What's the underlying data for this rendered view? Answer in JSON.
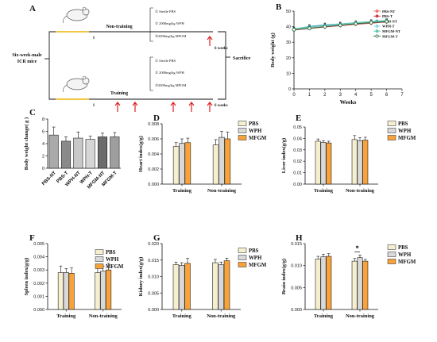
{
  "schematic": {
    "panel_label": "A",
    "left_label_line1": "Six-week-male",
    "left_label_line2": "ICR mice",
    "top_group": "Non-training",
    "top_items": [
      "① Sterile PBS",
      "② 2000mg/kg WPH",
      "③2000mg/kg MFGM"
    ],
    "bottom_group": "Training",
    "bottom_items": [
      "① Sterile PBS",
      "② 2000mg/kg WPH",
      "③2000mg/kg MFGM"
    ],
    "start_tick": "0",
    "end_label": "6 weeks",
    "sacrifice": "Sacrifice",
    "accent_color": "#f2c744",
    "arrow_color": "#e02020"
  },
  "chart_data": [
    {
      "id": "B",
      "panel_label": "B",
      "type": "line",
      "xlabel": "Weeks",
      "ylabel": "Body weight (g)",
      "xlim": [
        0,
        7
      ],
      "ylim": [
        0,
        50
      ],
      "xticks": [
        "0",
        "1",
        "2",
        "3",
        "4",
        "5",
        "6",
        "7"
      ],
      "yticks": [
        "0",
        "10",
        "20",
        "30",
        "40",
        "50"
      ],
      "x": [
        0,
        1,
        2,
        3,
        4,
        5,
        6
      ],
      "legend_position": "top-right",
      "series": [
        {
          "name": "PBS-NT",
          "color": "#f07a7a",
          "marker": "circle",
          "values": [
            38.0,
            39.5,
            40.2,
            41.0,
            42.0,
            42.8,
            43.5
          ]
        },
        {
          "name": "PBS-T",
          "color": "#d04040",
          "marker": "circle",
          "values": [
            37.8,
            38.8,
            39.8,
            40.6,
            41.5,
            42.2,
            43.0
          ]
        },
        {
          "name": "WPH-NT",
          "color": "#3fa0d8",
          "marker": "triangle",
          "values": [
            38.5,
            40.2,
            41.2,
            41.8,
            42.5,
            43.2,
            43.8
          ]
        },
        {
          "name": "WPH-T",
          "color": "#8ed6e8",
          "marker": "triangle",
          "values": [
            38.2,
            39.6,
            40.6,
            41.3,
            42.2,
            43.0,
            43.6
          ]
        },
        {
          "name": "MFGM-NT",
          "color": "#5fc9a8",
          "marker": "diamond",
          "values": [
            38.6,
            39.8,
            40.9,
            41.6,
            42.7,
            43.3,
            44.0
          ]
        },
        {
          "name": "MFGM-T",
          "color": "#1f6a3a",
          "marker": "circle-open",
          "values": [
            38.1,
            38.9,
            40.0,
            40.9,
            41.9,
            42.6,
            43.3
          ]
        }
      ]
    },
    {
      "id": "C",
      "panel_label": "C",
      "type": "bar",
      "ylabel": "Body weight change( g )",
      "ylim": [
        0,
        8
      ],
      "yticks": [
        "0",
        "2",
        "4",
        "6",
        "8"
      ],
      "categories": [
        "PBS-NT",
        "PBS-T",
        "WPH-NT",
        "WPH-T",
        "MFGM-NT",
        "MFGM-T"
      ],
      "values": [
        5.4,
        4.4,
        4.9,
        4.7,
        5.1,
        5.1
      ],
      "errors": [
        1.3,
        0.7,
        1.0,
        0.5,
        0.6,
        0.7
      ],
      "colors": [
        "#aaaaaa",
        "#8a8a8a",
        "#c8c8c8",
        "#d6d6d6",
        "#6c6c6c",
        "#9e9e9e"
      ]
    },
    {
      "id": "D",
      "panel_label": "D",
      "type": "bar",
      "ylabel": "Heart index(g/g)",
      "ylim": [
        0,
        0.008
      ],
      "yticks": [
        "0.000",
        "0.002",
        "0.004",
        "0.006",
        "0.008"
      ],
      "categories": [
        "Training",
        "Non-training"
      ],
      "series": [
        {
          "name": "PBS",
          "color": "#f5efcf",
          "values": [
            0.005,
            0.0052
          ],
          "errors": [
            0.0005,
            0.0007
          ]
        },
        {
          "name": "WPH",
          "color": "#d9d9d9",
          "values": [
            0.0054,
            0.0062
          ],
          "errors": [
            0.0006,
            0.0008
          ]
        },
        {
          "name": "MFGM",
          "color": "#f7a23a",
          "values": [
            0.0055,
            0.006
          ],
          "errors": [
            0.0006,
            0.0009
          ]
        }
      ]
    },
    {
      "id": "E",
      "panel_label": "E",
      "type": "bar",
      "ylabel": "Liver index(g/g)",
      "ylim": [
        0,
        0.05
      ],
      "yticks": [
        "0.00",
        "0.01",
        "0.02",
        "0.03",
        "0.04",
        "0.05"
      ],
      "categories": [
        "Training",
        "Non-training"
      ],
      "series": [
        {
          "name": "PBS",
          "color": "#f5efcf",
          "values": [
            0.0375,
            0.039
          ],
          "errors": [
            0.002,
            0.0035
          ]
        },
        {
          "name": "WPH",
          "color": "#d9d9d9",
          "values": [
            0.0365,
            0.038
          ],
          "errors": [
            0.0015,
            0.0025
          ]
        },
        {
          "name": "MFGM",
          "color": "#f7a23a",
          "values": [
            0.036,
            0.0385
          ],
          "errors": [
            0.0015,
            0.0025
          ]
        }
      ]
    },
    {
      "id": "F",
      "panel_label": "F",
      "type": "bar",
      "ylabel": "Spleen index(g/g)",
      "ylim": [
        0,
        0.005
      ],
      "yticks": [
        "0.000",
        "0.001",
        "0.002",
        "0.003",
        "0.004",
        "0.005"
      ],
      "categories": [
        "Training",
        "Non-training"
      ],
      "series": [
        {
          "name": "PBS",
          "color": "#f5efcf",
          "values": [
            0.0028,
            0.0028
          ],
          "errors": [
            0.0005,
            0.0005
          ]
        },
        {
          "name": "WPH",
          "color": "#d9d9d9",
          "values": [
            0.0028,
            0.0029
          ],
          "errors": [
            0.0003,
            0.0004
          ]
        },
        {
          "name": "MFGM",
          "color": "#f7a23a",
          "values": [
            0.00275,
            0.003
          ],
          "errors": [
            0.0004,
            0.0005
          ]
        }
      ]
    },
    {
      "id": "G",
      "panel_label": "G",
      "type": "bar",
      "ylabel": "Kidney index(g/g)",
      "ylim": [
        0,
        0.02
      ],
      "yticks": [
        "0.000",
        "0.005",
        "0.010",
        "0.015",
        "0.020"
      ],
      "categories": [
        "Training",
        "Non-training"
      ],
      "series": [
        {
          "name": "PBS",
          "color": "#f5efcf",
          "values": [
            0.0136,
            0.0142
          ],
          "errors": [
            0.0008,
            0.001
          ]
        },
        {
          "name": "WPH",
          "color": "#d9d9d9",
          "values": [
            0.0134,
            0.0136
          ],
          "errors": [
            0.0008,
            0.0008
          ]
        },
        {
          "name": "MFGM",
          "color": "#f7a23a",
          "values": [
            0.014,
            0.0148
          ],
          "errors": [
            0.0015,
            0.0008
          ]
        }
      ]
    },
    {
      "id": "H",
      "panel_label": "H",
      "type": "bar",
      "ylabel": "Brain index(g/g)",
      "ylim": [
        0,
        0.015
      ],
      "yticks": [
        "0.000",
        "0.005",
        "0.010",
        "0.015"
      ],
      "categories": [
        "Training",
        "Non-training"
      ],
      "series": [
        {
          "name": "PBS",
          "color": "#f5efcf",
          "values": [
            0.0115,
            0.011
          ],
          "errors": [
            0.0006,
            0.0006
          ]
        },
        {
          "name": "WPH",
          "color": "#d9d9d9",
          "values": [
            0.012,
            0.0118
          ],
          "errors": [
            0.0006,
            0.0006
          ]
        },
        {
          "name": "MFGM",
          "color": "#f7a23a",
          "values": [
            0.0121,
            0.011
          ],
          "errors": [
            0.0006,
            0.0004
          ]
        }
      ],
      "annotation": "*"
    }
  ]
}
